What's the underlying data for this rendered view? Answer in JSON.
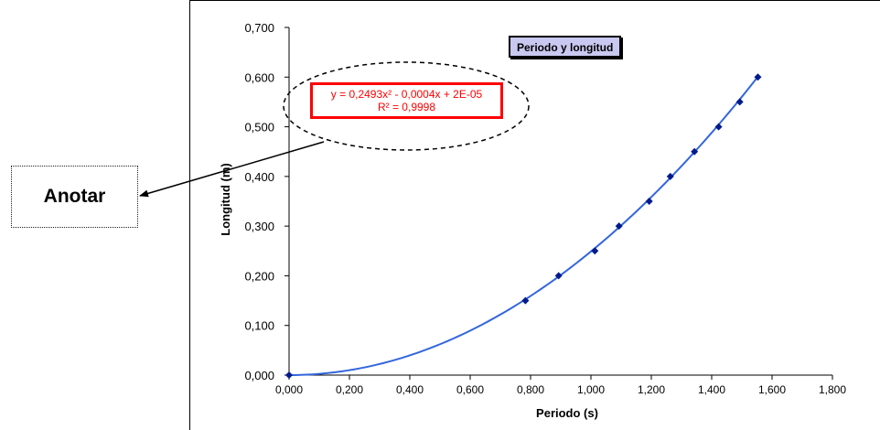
{
  "chart_data": {
    "type": "scatter",
    "title": "Periodo y longitud",
    "xlabel": "Periodo (s)",
    "ylabel": "Longitud (m)",
    "xlim": [
      0,
      1.8
    ],
    "ylim": [
      0,
      0.7
    ],
    "x_ticks": [
      "0,000",
      "0,200",
      "0,400",
      "0,600",
      "0,800",
      "1,000",
      "1,200",
      "1,400",
      "1,600",
      "1,800"
    ],
    "y_ticks": [
      "0,000",
      "0,100",
      "0,200",
      "0,300",
      "0,400",
      "0,500",
      "0,600",
      "0,700"
    ],
    "x_tick_values": [
      0,
      0.2,
      0.4,
      0.6,
      0.8,
      1.0,
      1.2,
      1.4,
      1.6,
      1.8
    ],
    "y_tick_values": [
      0,
      0.1,
      0.2,
      0.3,
      0.4,
      0.5,
      0.6,
      0.7
    ],
    "points": {
      "x": [
        0.0,
        0.783,
        0.893,
        1.013,
        1.093,
        1.193,
        1.263,
        1.343,
        1.423,
        1.493,
        1.553
      ],
      "y": [
        0.0,
        0.15,
        0.2,
        0.25,
        0.3,
        0.35,
        0.4,
        0.45,
        0.5,
        0.55,
        0.6
      ]
    },
    "trendline": {
      "type": "polynomial",
      "coefficients": [
        0.2493,
        -0.0004,
        2e-05
      ],
      "x_range": [
        0,
        1.553
      ],
      "equation": "y = 0,2493x² - 0,0004x + 2E-05",
      "r_squared": "R² = 0,9998"
    },
    "grid": false,
    "legend": "none",
    "colors": {
      "points": "#001a8c",
      "trendline": "#3366dd",
      "equation_text": "#ff0000",
      "title_background": "#c8c8f0"
    }
  },
  "annotation": {
    "label": "Anotar"
  }
}
